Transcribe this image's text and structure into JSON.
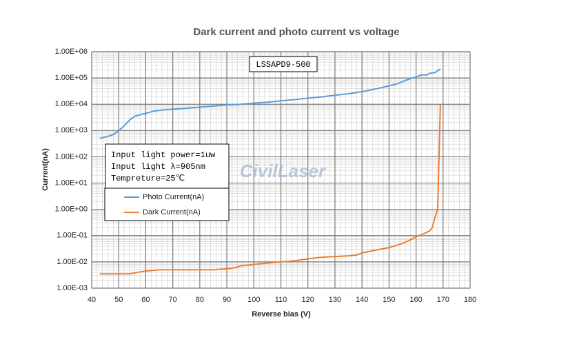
{
  "chart_data": {
    "type": "line",
    "title": "Dark current and photo current vs voltage",
    "x_label": "Reverse bias (V)",
    "y_label": "Current(nA)",
    "log_y": true,
    "grid": true,
    "legend": "lower left",
    "xlim": [
      40,
      180
    ],
    "xticks": [
      40,
      50,
      60,
      70,
      80,
      90,
      100,
      110,
      120,
      130,
      140,
      150,
      160,
      170,
      180
    ],
    "ylim": [
      0.001,
      1000000
    ],
    "yticks": [
      {
        "value": 0.001,
        "label": "1.00E-03"
      },
      {
        "value": 0.01,
        "label": "1.00E-02"
      },
      {
        "value": 0.1,
        "label": "1.00E-01"
      },
      {
        "value": 1,
        "label": "1.00E+00"
      },
      {
        "value": 10,
        "label": "1.00E+01"
      },
      {
        "value": 100,
        "label": "1.00E+02"
      },
      {
        "value": 1000,
        "label": "1.00E+03"
      },
      {
        "value": 10000,
        "label": "1.00E+04"
      },
      {
        "value": 100000,
        "label": "1.00E+05"
      },
      {
        "value": 1000000,
        "label": "1.00E+06"
      }
    ],
    "annotations": [
      "LSSAPD9-500",
      "Input light power=1uw",
      "Input light λ=905nm",
      "Tempreture=25℃",
      "CivilLaser"
    ],
    "series": [
      {
        "name": "Photo Current(nA)",
        "color": "#5b9bd5",
        "x": [
          43,
          46,
          48,
          50,
          52,
          54,
          56,
          58,
          60,
          63,
          66,
          70,
          75,
          80,
          85,
          90,
          95,
          100,
          105,
          110,
          115,
          120,
          125,
          130,
          135,
          140,
          145,
          150,
          153,
          156,
          158,
          160,
          162,
          164,
          165,
          167,
          169
        ],
        "values": [
          500,
          600,
          700,
          1000,
          1500,
          2500,
          3500,
          4000,
          4500,
          5500,
          6000,
          6500,
          7000,
          7800,
          8500,
          9500,
          10000,
          11000,
          12000,
          13500,
          15000,
          17000,
          19000,
          22000,
          25000,
          30000,
          38000,
          50000,
          60000,
          80000,
          95000,
          110000,
          130000,
          130000,
          150000,
          160000,
          220000
        ]
      },
      {
        "name": "Dark  Current(nA)",
        "color": "#ed7d31",
        "x": [
          43,
          50,
          54,
          57,
          60,
          65,
          70,
          80,
          85,
          90,
          93,
          95,
          100,
          105,
          110,
          115,
          120,
          125,
          130,
          135,
          138,
          140,
          145,
          150,
          155,
          158,
          160,
          163,
          165,
          166,
          167,
          168,
          168.5,
          169
        ],
        "values": [
          0.0035,
          0.0035,
          0.0035,
          0.004,
          0.0045,
          0.005,
          0.005,
          0.005,
          0.005,
          0.0055,
          0.006,
          0.007,
          0.008,
          0.009,
          0.01,
          0.011,
          0.013,
          0.015,
          0.016,
          0.017,
          0.018,
          0.022,
          0.028,
          0.035,
          0.05,
          0.07,
          0.09,
          0.12,
          0.15,
          0.2,
          0.5,
          1,
          100,
          10000
        ]
      }
    ]
  }
}
